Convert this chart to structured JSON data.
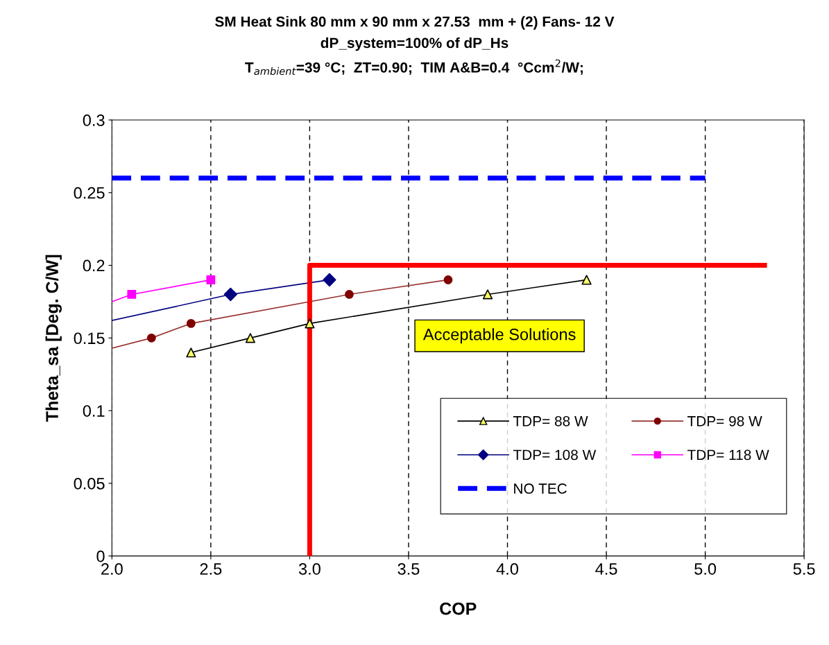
{
  "chart_data": {
    "type": "line",
    "title": "SM Heat Sink 80 mm x 90 mm x 27.53  mm + (2) Fans- 12 V",
    "subtitle": "dP_system=100% of dP_Hs\nT$_{ambient}$=39 °C;  ZT=0.90;  TIM A&B=0.4  °Ccm$^{2}$/W;",
    "xlabel": "COP",
    "ylabel": "Theta_sa [Deg. C/W]",
    "xlim": [
      2.0,
      5.5
    ],
    "ylim": [
      0,
      0.3
    ],
    "xticks": [
      {
        "value": 2.0,
        "label": "2.0"
      },
      {
        "value": 2.5,
        "label": "2.5"
      },
      {
        "value": 3.0,
        "label": "3.0"
      },
      {
        "value": 3.5,
        "label": "3.5"
      },
      {
        "value": 4.0,
        "label": "4.0"
      },
      {
        "value": 4.5,
        "label": "4.5"
      },
      {
        "value": 5.0,
        "label": "5.0"
      },
      {
        "value": 5.5,
        "label": "5.5"
      }
    ],
    "yticks": [
      0,
      0.05,
      0.1,
      0.15,
      0.2,
      0.25,
      0.3
    ],
    "grid": "x",
    "legend": "bottom right",
    "annotations": [
      "Acceptable Solutions"
    ],
    "series": [
      {
        "name": "TDP= 88 W",
        "color": "#000000",
        "colors": [
          "#ffff66",
          "#ffff66",
          "#ffff66",
          "#ffff66",
          "#ffff66"
        ],
        "marker": "triangle",
        "x": [
          2.4,
          2.7,
          3.0,
          3.9,
          4.4
        ],
        "values": [
          0.14,
          0.15,
          0.16,
          0.18,
          0.19
        ]
      },
      {
        "name": "TDP= 98 W",
        "color": "#993333",
        "colors": [
          "#800000",
          "#800000",
          "#800000",
          "#800000"
        ],
        "marker": "circle",
        "x": [
          2.2,
          2.4,
          3.2,
          3.7
        ],
        "values": [
          0.15,
          0.16,
          0.18,
          0.19
        ]
      },
      {
        "name": "TDP= 108 W",
        "color": "#000080",
        "colors": [
          "#000080",
          "#000080"
        ],
        "marker": "diamond",
        "x": [
          2.6,
          3.1
        ],
        "values": [
          0.18,
          0.19
        ]
      },
      {
        "name": "TDP= 118 W",
        "color": "#ff00ff",
        "colors": [
          "#ff00ff",
          "#ff00ff"
        ],
        "marker": "square",
        "x": [
          2.1,
          2.5
        ],
        "values": [
          0.18,
          0.19
        ]
      },
      {
        "name": "NO TEC",
        "color": "#0000ff",
        "marker": "none",
        "line_style": "dashed",
        "x": [
          2.0,
          5.0
        ],
        "values": [
          0.26,
          0.26
        ]
      },
      {
        "color": "#ff0000",
        "marker": "none",
        "x": [
          3.0,
          3.0,
          5.3
        ],
        "values": [
          0,
          0.2,
          0.2
        ]
      },
      {
        "color": "#993333",
        "marker": "none",
        "x": [
          2.0,
          2.2
        ],
        "values": [
          0.143,
          0.15
        ]
      },
      {
        "color": "#000080",
        "marker": "none",
        "x": [
          2.0,
          2.6
        ],
        "values": [
          0.162,
          0.18
        ]
      },
      {
        "color": "#ff00ff",
        "marker": "none",
        "x": [
          2.0,
          2.1
        ],
        "values": [
          0.175,
          0.18
        ]
      }
    ]
  }
}
